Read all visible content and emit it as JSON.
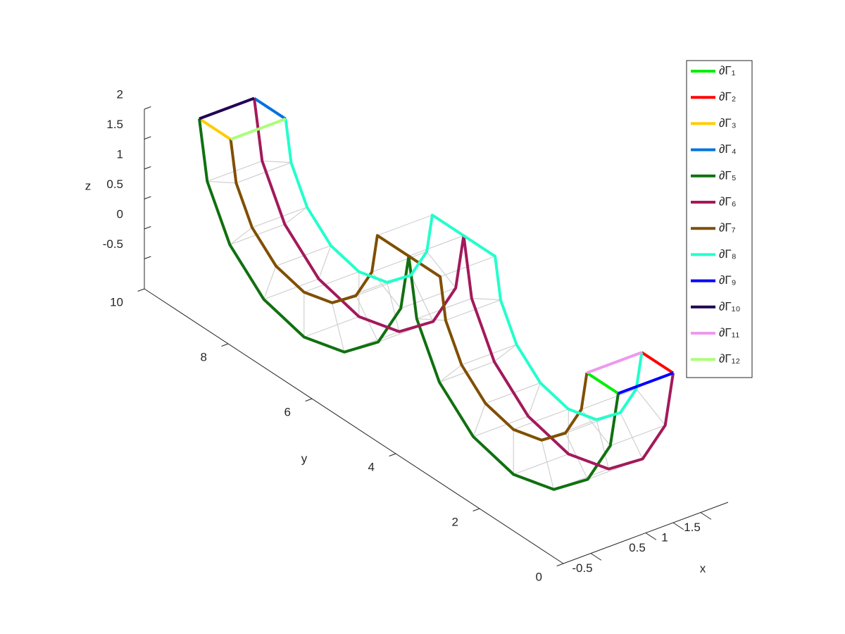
{
  "chart_data": {
    "type": "line3d",
    "xlabel": "x",
    "ylabel": "y",
    "zlabel": "z",
    "xlim": [
      -1,
      2
    ],
    "ylim": [
      0,
      10
    ],
    "zlim": [
      -1,
      2
    ],
    "xticks": [
      -0.5,
      0.5,
      1,
      1.5
    ],
    "yticks": [
      0,
      2,
      4,
      6,
      8,
      10
    ],
    "zticks": [
      -0.5,
      0,
      0.5,
      1,
      1.5,
      2
    ],
    "mesh_color": "#d0d0d0",
    "series": [
      {
        "name": "∂Γ₁",
        "color": "#00ee00",
        "x": [
          0,
          0
        ],
        "y": [
          0,
          0.75
        ],
        "z": [
          1.5,
          1.5
        ]
      },
      {
        "name": "∂Γ₂",
        "color": "#ff0000",
        "x": [
          1,
          1
        ],
        "y": [
          0,
          0.75
        ],
        "z": [
          1.5,
          1.5
        ]
      },
      {
        "name": "∂Γ₃",
        "color": "#ffcc00",
        "x": [
          0,
          0
        ],
        "y": [
          10,
          9.25
        ],
        "z": [
          1.5,
          1.5
        ]
      },
      {
        "name": "∂Γ₄",
        "color": "#0072e0",
        "x": [
          1,
          1
        ],
        "y": [
          10,
          9.25
        ],
        "z": [
          1.5,
          1.5
        ]
      },
      {
        "name": "∂Γ₅",
        "color": "#107010",
        "x": [
          0,
          0,
          0,
          0,
          0,
          0,
          0,
          0,
          0,
          0,
          0,
          0,
          0,
          0,
          0,
          0,
          0,
          0
        ],
        "y": [
          10,
          9.81,
          9.27,
          8.46,
          7.5,
          6.54,
          5.73,
          5.19,
          5,
          5,
          4.81,
          4.27,
          3.46,
          2.5,
          1.54,
          0.73,
          0.19,
          0
        ],
        "z": [
          1.5,
          0.54,
          -0.27,
          -0.81,
          -1,
          -0.81,
          -0.27,
          0.54,
          1.5,
          1.5,
          0.54,
          -0.27,
          -0.81,
          -1,
          -0.81,
          -0.27,
          0.54,
          1.5
        ]
      },
      {
        "name": "∂Γ₆",
        "color": "#a3195b",
        "x": [
          1,
          1,
          1,
          1,
          1,
          1,
          1,
          1,
          1,
          1,
          1,
          1,
          1,
          1,
          1,
          1,
          1,
          1
        ],
        "y": [
          10,
          9.81,
          9.27,
          8.46,
          7.5,
          6.54,
          5.73,
          5.19,
          5,
          5,
          4.81,
          4.27,
          3.46,
          2.5,
          1.54,
          0.73,
          0.19,
          0
        ],
        "z": [
          1.5,
          0.54,
          -0.27,
          -0.81,
          -1,
          -0.81,
          -0.27,
          0.54,
          1.5,
          1.5,
          0.54,
          -0.27,
          -0.81,
          -1,
          -0.81,
          -0.27,
          0.54,
          1.5
        ]
      },
      {
        "name": "∂Γ₇",
        "color": "#7f4f00",
        "x": [
          0,
          0,
          0,
          0,
          0,
          0,
          0,
          0,
          0,
          0,
          0,
          0,
          0,
          0,
          0,
          0,
          0,
          0
        ],
        "y": [
          9.25,
          9.12,
          8.74,
          8.17,
          7.5,
          6.83,
          6.26,
          5.88,
          5.75,
          4.25,
          4.12,
          3.74,
          3.17,
          2.5,
          1.83,
          1.26,
          0.88,
          0.75
        ],
        "z": [
          1.5,
          0.83,
          0.26,
          -0.12,
          -0.25,
          -0.12,
          0.26,
          0.83,
          1.5,
          1.5,
          0.83,
          0.26,
          -0.12,
          -0.25,
          -0.12,
          0.26,
          0.83,
          1.5
        ]
      },
      {
        "name": "∂Γ₈",
        "color": "#22ffcc",
        "x": [
          1,
          1,
          1,
          1,
          1,
          1,
          1,
          1,
          1,
          1,
          1,
          1,
          1,
          1,
          1,
          1,
          1,
          1
        ],
        "y": [
          9.25,
          9.12,
          8.74,
          8.17,
          7.5,
          6.83,
          6.26,
          5.88,
          5.75,
          4.25,
          4.12,
          3.74,
          3.17,
          2.5,
          1.83,
          1.26,
          0.88,
          0.75
        ],
        "z": [
          1.5,
          0.83,
          0.26,
          -0.12,
          -0.25,
          -0.12,
          0.26,
          0.83,
          1.5,
          1.5,
          0.83,
          0.26,
          -0.12,
          -0.25,
          -0.12,
          0.26,
          0.83,
          1.5
        ]
      },
      {
        "name": "∂Γ₉",
        "color": "#0000ff",
        "x": [
          0,
          1
        ],
        "y": [
          0,
          0
        ],
        "z": [
          1.5,
          1.5
        ]
      },
      {
        "name": "∂Γ₁₀",
        "color": "#220055",
        "x": [
          0,
          1
        ],
        "y": [
          10,
          10
        ],
        "z": [
          1.5,
          1.5
        ]
      },
      {
        "name": "∂Γ₁₁",
        "color": "#ee99ee",
        "x": [
          0,
          1
        ],
        "y": [
          0.75,
          0.75
        ],
        "z": [
          1.5,
          1.5
        ]
      },
      {
        "name": "∂Γ₁₂",
        "color": "#aaff77",
        "x": [
          0,
          1
        ],
        "y": [
          9.25,
          9.25
        ],
        "z": [
          1.5,
          1.5
        ]
      }
    ]
  }
}
